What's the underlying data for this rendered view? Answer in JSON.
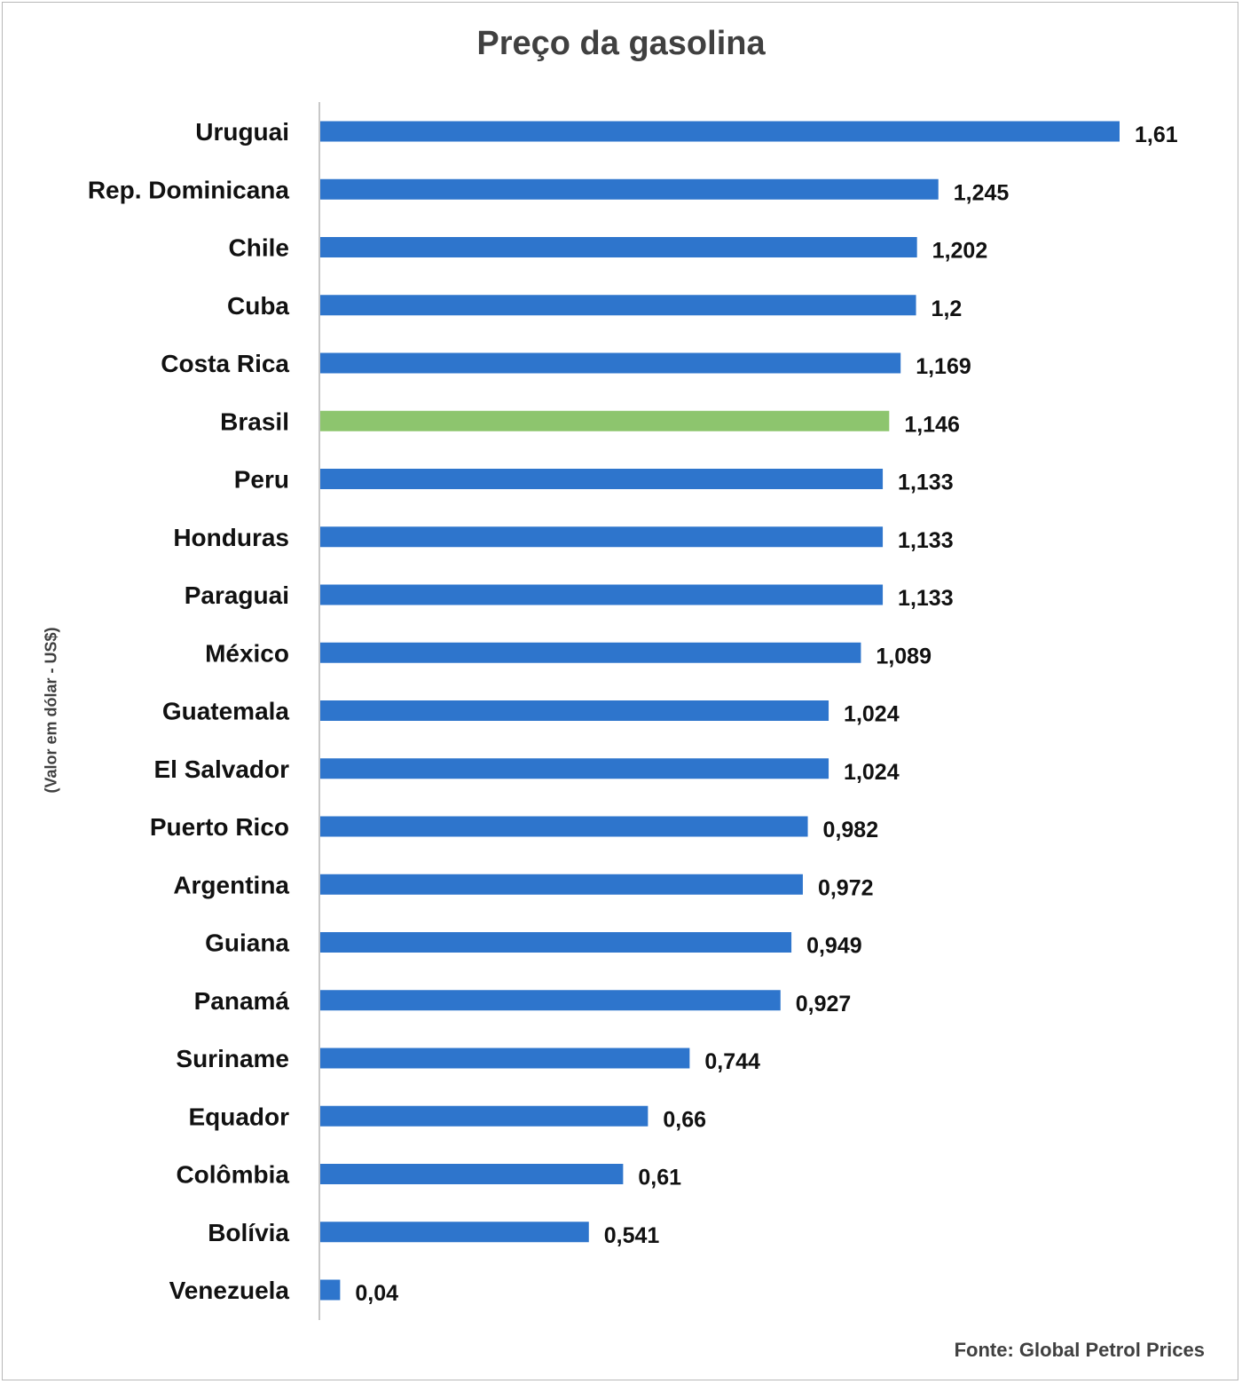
{
  "chart_data": {
    "type": "bar",
    "orientation": "horizontal",
    "title": "Preço da gasolina",
    "ylabel": "(Valor em dólar - US$)",
    "xlabel": "",
    "source": "Fonte: Global Petrol Prices",
    "categories": [
      "Uruguai",
      "Rep. Dominicana",
      "Chile",
      "Cuba",
      "Costa Rica",
      "Brasil",
      "Peru",
      "Honduras",
      "Paraguai",
      "México",
      "Guatemala",
      "El Salvador",
      "Puerto Rico",
      "Argentina",
      "Guiana",
      "Panamá",
      "Suriname",
      "Equador",
      "Colômbia",
      "Bolívia",
      "Venezuela"
    ],
    "values": [
      1.61,
      1.245,
      1.202,
      1.2,
      1.169,
      1.146,
      1.133,
      1.133,
      1.133,
      1.089,
      1.024,
      1.024,
      0.982,
      0.972,
      0.949,
      0.927,
      0.744,
      0.66,
      0.61,
      0.541,
      0.04
    ],
    "value_labels": [
      "1,61",
      "1,245",
      "1,202",
      "1,2",
      "1,169",
      "1,146",
      "1,133",
      "1,133",
      "1,133",
      "1,089",
      "1,024",
      "1,024",
      "0,982",
      "0,972",
      "0,949",
      "0,927",
      "0,744",
      "0,66",
      "0,61",
      "0,541",
      "0,04"
    ],
    "highlight": "Brasil",
    "colors": {
      "bar": "#2e75cc",
      "highlight": "#8dc56e",
      "axis": "#c8c8c8"
    },
    "xlim": [
      0,
      1.61
    ],
    "grid": false,
    "legend": "none"
  }
}
